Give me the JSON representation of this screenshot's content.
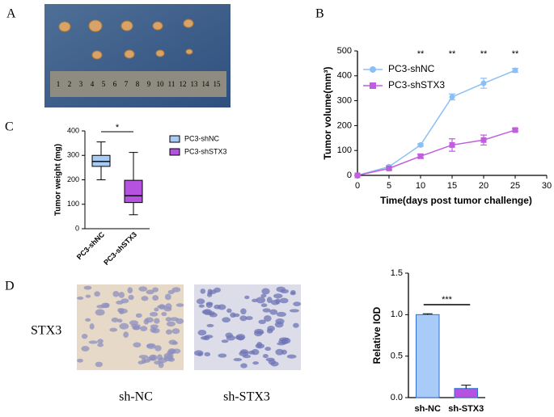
{
  "panels": {
    "a": "A",
    "b": "B",
    "c": "C",
    "d": "D"
  },
  "photo": {
    "ruler_labels": [
      "1",
      "2",
      "3",
      "4",
      "5",
      "6",
      "7",
      "8",
      "9",
      "10",
      "11",
      "12",
      "13",
      "14",
      "15"
    ]
  },
  "ihc": {
    "row_label": "STX3",
    "images": [
      "sh-NC",
      "sh-STX3"
    ]
  },
  "chart_data": [
    {
      "type": "line",
      "x_label": "Time(days post tumor challenge)",
      "y_label": "Tumor volume(mm³)",
      "x": [
        0,
        5,
        10,
        15,
        20,
        25
      ],
      "series": [
        {
          "name": "PC3-shNC",
          "color": "#8cc0f5",
          "marker": "circle",
          "values": [
            0,
            35,
            122,
            315,
            370,
            422
          ],
          "errors": [
            0,
            5,
            5,
            12,
            20,
            8
          ]
        },
        {
          "name": "PC3-shSTX3",
          "color": "#c05ede",
          "marker": "square",
          "values": [
            0,
            28,
            77,
            122,
            142,
            182
          ],
          "errors": [
            0,
            5,
            8,
            25,
            20,
            5
          ]
        }
      ],
      "annotations": [
        {
          "x": 10,
          "text": "**"
        },
        {
          "x": 15,
          "text": "**"
        },
        {
          "x": 20,
          "text": "**"
        },
        {
          "x": 25,
          "text": "**"
        }
      ],
      "xlim": [
        0,
        30
      ],
      "xticks": [
        0,
        5,
        10,
        15,
        20,
        25,
        30
      ],
      "ylim": [
        0,
        500
      ],
      "yticks": [
        0,
        100,
        200,
        300,
        400,
        500
      ],
      "legend": "upper left"
    },
    {
      "type": "box",
      "y_label": "Tumor weight (mg)",
      "significance": "*",
      "series": [
        {
          "name": "PC3-shNC",
          "color": "#a9cbf3",
          "min": 200,
          "q1": 255,
          "median": 275,
          "q3": 300,
          "max": 355
        },
        {
          "name": "PC3-shSTX3",
          "color": "#b552df",
          "min": 57,
          "q1": 107,
          "median": 135,
          "q3": 198,
          "max": 312
        }
      ],
      "ylim": [
        0,
        400
      ],
      "yticks": [
        0,
        100,
        200,
        300,
        400
      ],
      "legend": "right"
    },
    {
      "type": "bar",
      "y_label": "Relative IOD",
      "significance": "***",
      "categories": [
        "sh-NC",
        "sh-STX3"
      ],
      "values": [
        1.0,
        0.11
      ],
      "errors": [
        0.01,
        0.04
      ],
      "colors": [
        "#a8cbf8",
        "#b552df"
      ],
      "ylim": [
        0,
        1.5
      ],
      "yticks": [
        {
          "value": 0,
          "label": "0.0"
        },
        {
          "value": 0.5,
          "label": "0.5"
        },
        {
          "value": 1.0,
          "label": "1.0"
        },
        {
          "value": 1.5,
          "label": "1.5"
        }
      ]
    }
  ]
}
